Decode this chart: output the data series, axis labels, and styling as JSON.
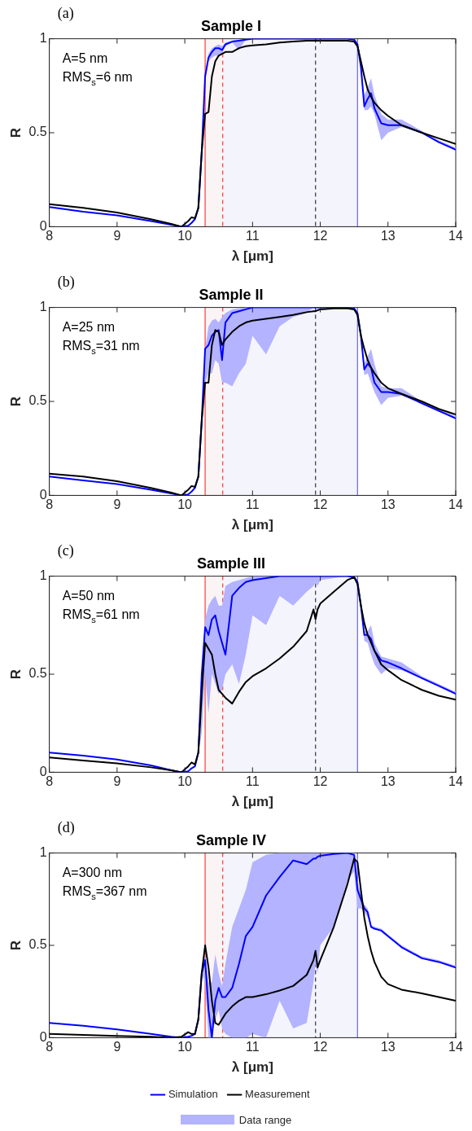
{
  "chart_data": [
    {
      "type": "line",
      "title": "Sample I",
      "xlabel": "λ [μm]",
      "ylabel": "R",
      "annotations": [
        "(a)",
        "A=5 nm",
        "RMS$_{s}$=6 nm"
      ],
      "x": [
        8,
        8.5,
        9,
        9.5,
        9.8,
        9.95,
        10.05,
        10.1,
        10.15,
        10.2,
        10.25,
        10.3,
        10.35,
        10.4,
        10.45,
        10.5,
        10.55,
        10.6,
        10.7,
        10.8,
        10.9,
        11,
        11.2,
        11.4,
        11.6,
        11.8,
        11.9,
        11.93,
        11.96,
        12,
        12.2,
        12.4,
        12.5,
        12.55,
        12.6,
        12.65,
        12.7,
        12.75,
        12.8,
        12.9,
        13,
        13.2,
        13.5,
        13.75,
        14
      ],
      "xlim": [
        8,
        14
      ],
      "xticks": [
        8,
        9,
        10,
        11,
        12,
        13,
        14
      ],
      "ylim": [
        0,
        1
      ],
      "yticks": [
        0,
        0.5,
        1
      ],
      "bands": [
        {
          "axis": "x",
          "from": 10.3,
          "to": 10.56,
          "color": "#fbf4f4"
        },
        {
          "axis": "x",
          "from": 10.56,
          "to": 12.55,
          "color": "#f4f4fd"
        }
      ],
      "ref_lines": [
        {
          "axis": "x",
          "value": 10.3,
          "color": "#f04040",
          "line_style": "solid"
        },
        {
          "axis": "x",
          "value": 10.56,
          "color": "#f04040",
          "line_style": "dashed"
        },
        {
          "axis": "x",
          "value": 11.93,
          "color": "#333333",
          "line_style": "dashed"
        },
        {
          "axis": "x",
          "value": 12.55,
          "color": "#6666ff",
          "line_style": "solid"
        }
      ],
      "series": [
        {
          "color": "#0000ff",
          "values": [
            0.105,
            0.08,
            0.06,
            0.03,
            0.01,
            0,
            0.005,
            0.02,
            0.04,
            0.1,
            0.4,
            0.8,
            0.9,
            0.93,
            0.95,
            0.95,
            0.94,
            0.97,
            0.985,
            0.99,
            0.995,
            1,
            1,
            1,
            1,
            1,
            1,
            1,
            1,
            1,
            1,
            1,
            0.995,
            0.97,
            0.85,
            0.64,
            0.68,
            0.71,
            0.63,
            0.55,
            0.54,
            0.54,
            0.5,
            0.45,
            0.41
          ],
          "lower": [
            0.105,
            0.08,
            0.06,
            0.03,
            0.01,
            0,
            0.005,
            0.02,
            0.04,
            0.1,
            0.4,
            0.78,
            0.88,
            0.9,
            0.91,
            0.91,
            0.92,
            0.96,
            0.98,
            0.94,
            0.995,
            1,
            1,
            1,
            1,
            1,
            1,
            1,
            1,
            1,
            1,
            1,
            0.995,
            0.97,
            0.83,
            0.62,
            0.62,
            0.64,
            0.6,
            0.46,
            0.5,
            0.53,
            0.5,
            0.45,
            0.41
          ],
          "upper": [
            0.105,
            0.08,
            0.06,
            0.03,
            0.01,
            0,
            0.005,
            0.02,
            0.04,
            0.1,
            0.4,
            0.8,
            0.92,
            0.95,
            0.96,
            0.97,
            0.96,
            0.98,
            0.99,
            0.995,
            1,
            1,
            1,
            1,
            1,
            1,
            1,
            1,
            1,
            1,
            1,
            1,
            1,
            0.98,
            0.87,
            0.7,
            0.74,
            0.79,
            0.7,
            0.6,
            0.57,
            0.57,
            0.51,
            0.46,
            0.42
          ]
        },
        {
          "color": "#000000",
          "values": [
            0.12,
            0.1,
            0.075,
            0.04,
            0.015,
            0,
            0.03,
            0.05,
            0.045,
            0.1,
            0.4,
            0.6,
            0.61,
            0.8,
            0.88,
            0.91,
            0.92,
            0.93,
            0.93,
            0.95,
            0.96,
            0.965,
            0.97,
            0.98,
            0.985,
            0.99,
            0.99,
            0.99,
            0.99,
            0.99,
            0.99,
            0.99,
            0.985,
            0.96,
            0.88,
            0.8,
            0.73,
            0.69,
            0.66,
            0.62,
            0.59,
            0.54,
            0.5,
            0.47,
            0.44
          ]
        }
      ]
    },
    {
      "type": "line",
      "title": "Sample II",
      "xlabel": "λ [μm]",
      "ylabel": "R",
      "annotations": [
        "(b)",
        "A=25 nm",
        "RMS$_{s}$=31 nm"
      ],
      "x": [
        8,
        8.5,
        9,
        9.5,
        9.8,
        9.95,
        10.05,
        10.1,
        10.15,
        10.2,
        10.25,
        10.3,
        10.35,
        10.4,
        10.45,
        10.5,
        10.55,
        10.6,
        10.7,
        10.8,
        10.9,
        11,
        11.2,
        11.4,
        11.6,
        11.8,
        11.9,
        11.93,
        11.96,
        12,
        12.2,
        12.4,
        12.5,
        12.55,
        12.6,
        12.65,
        12.7,
        12.75,
        12.8,
        12.9,
        13,
        13.2,
        13.5,
        13.75,
        14
      ],
      "xlim": [
        8,
        14
      ],
      "xticks": [
        8,
        9,
        10,
        11,
        12,
        13,
        14
      ],
      "ylim": [
        0,
        1
      ],
      "yticks": [
        0,
        0.5,
        1
      ],
      "bands": [
        {
          "axis": "x",
          "from": 10.3,
          "to": 10.56,
          "color": "#fbf4f4"
        },
        {
          "axis": "x",
          "from": 10.56,
          "to": 12.55,
          "color": "#f4f4fd"
        }
      ],
      "ref_lines": [
        {
          "axis": "x",
          "value": 10.3,
          "color": "#f04040",
          "line_style": "solid"
        },
        {
          "axis": "x",
          "value": 10.56,
          "color": "#f04040",
          "line_style": "dashed"
        },
        {
          "axis": "x",
          "value": 11.93,
          "color": "#333333",
          "line_style": "dashed"
        },
        {
          "axis": "x",
          "value": 12.55,
          "color": "#6666ff",
          "line_style": "solid"
        }
      ],
      "series": [
        {
          "color": "#0000ff",
          "values": [
            0.1,
            0.08,
            0.06,
            0.03,
            0.01,
            0,
            0.005,
            0.02,
            0.04,
            0.1,
            0.4,
            0.78,
            0.8,
            0.85,
            0.87,
            0.88,
            0.72,
            0.92,
            0.97,
            0.98,
            0.99,
            1,
            1,
            1,
            1,
            1,
            1,
            1,
            1,
            1,
            1,
            1,
            0.995,
            0.97,
            0.85,
            0.67,
            0.7,
            0.68,
            0.6,
            0.55,
            0.55,
            0.54,
            0.49,
            0.45,
            0.41
          ],
          "lower": [
            0.1,
            0.08,
            0.06,
            0.03,
            0.01,
            0,
            0.005,
            0.02,
            0.04,
            0.1,
            0.4,
            0.6,
            0.65,
            0.65,
            0.72,
            0.7,
            0.6,
            0.6,
            0.58,
            0.65,
            0.7,
            0.85,
            0.75,
            0.9,
            0.95,
            0.97,
            1,
            1,
            1,
            1,
            1,
            1,
            0.995,
            0.97,
            0.85,
            0.64,
            0.65,
            0.6,
            0.55,
            0.48,
            0.52,
            0.53,
            0.49,
            0.45,
            0.41
          ],
          "upper": [
            0.1,
            0.08,
            0.06,
            0.03,
            0.01,
            0,
            0.005,
            0.02,
            0.04,
            0.1,
            0.4,
            0.78,
            0.9,
            0.93,
            0.94,
            0.92,
            0.95,
            0.97,
            0.99,
            0.995,
            1,
            1,
            1,
            1,
            1,
            1,
            1,
            1,
            1,
            1,
            1,
            1,
            1,
            0.98,
            0.87,
            0.7,
            0.74,
            0.78,
            0.7,
            0.58,
            0.57,
            0.57,
            0.5,
            0.46,
            0.42
          ]
        },
        {
          "color": "#000000",
          "values": [
            0.115,
            0.1,
            0.075,
            0.04,
            0.015,
            0,
            0.03,
            0.05,
            0.045,
            0.1,
            0.4,
            0.6,
            0.6,
            0.8,
            0.88,
            0.87,
            0.8,
            0.83,
            0.87,
            0.9,
            0.92,
            0.93,
            0.94,
            0.95,
            0.96,
            0.975,
            0.98,
            0.98,
            0.985,
            0.99,
            0.995,
            0.995,
            0.99,
            0.96,
            0.85,
            0.78,
            0.72,
            0.68,
            0.65,
            0.6,
            0.57,
            0.54,
            0.5,
            0.46,
            0.43
          ]
        }
      ]
    },
    {
      "type": "line",
      "title": "Sample III",
      "xlabel": "λ [μm]",
      "ylabel": "R",
      "annotations": [
        "(c)",
        "A=50 nm",
        "RMS$_{s}$=61 nm"
      ],
      "x": [
        8,
        8.5,
        9,
        9.5,
        9.8,
        9.95,
        10.05,
        10.1,
        10.15,
        10.2,
        10.25,
        10.3,
        10.35,
        10.4,
        10.45,
        10.5,
        10.55,
        10.6,
        10.7,
        10.8,
        10.9,
        11,
        11.2,
        11.4,
        11.6,
        11.8,
        11.9,
        11.93,
        11.96,
        12,
        12.2,
        12.4,
        12.5,
        12.55,
        12.6,
        12.65,
        12.7,
        12.75,
        12.8,
        12.9,
        13,
        13.2,
        13.5,
        13.75,
        14
      ],
      "xlim": [
        8,
        14
      ],
      "xticks": [
        8,
        9,
        10,
        11,
        12,
        13,
        14
      ],
      "ylim": [
        0,
        1
      ],
      "yticks": [
        0,
        0.5,
        1
      ],
      "bands": [
        {
          "axis": "x",
          "from": 10.3,
          "to": 10.56,
          "color": "#fbf4f4"
        },
        {
          "axis": "x",
          "from": 10.56,
          "to": 12.55,
          "color": "#f4f4fd"
        }
      ],
      "ref_lines": [
        {
          "axis": "x",
          "value": 10.3,
          "color": "#f04040",
          "line_style": "solid"
        },
        {
          "axis": "x",
          "value": 10.56,
          "color": "#f04040",
          "line_style": "dashed"
        },
        {
          "axis": "x",
          "value": 11.93,
          "color": "#333333",
          "line_style": "dashed"
        },
        {
          "axis": "x",
          "value": 12.55,
          "color": "#6666ff",
          "line_style": "solid"
        }
      ],
      "series": [
        {
          "color": "#0000ff",
          "values": [
            0.1,
            0.085,
            0.065,
            0.035,
            0.01,
            0,
            0.005,
            0.02,
            0.03,
            0.1,
            0.5,
            0.74,
            0.7,
            0.78,
            0.8,
            0.72,
            0.66,
            0.6,
            0.9,
            0.94,
            0.97,
            0.98,
            0.99,
            1,
            1,
            1,
            1,
            1,
            1,
            1,
            1,
            1,
            0.995,
            0.97,
            0.85,
            0.7,
            0.7,
            0.68,
            0.62,
            0.57,
            0.56,
            0.53,
            0.48,
            0.44,
            0.4
          ],
          "lower": [
            0.1,
            0.085,
            0.065,
            0.035,
            0.01,
            0,
            0.005,
            0.02,
            0.03,
            0.1,
            0.2,
            0.5,
            0.3,
            0.5,
            0.45,
            0.4,
            0.42,
            0.5,
            0.55,
            0.45,
            0.6,
            0.8,
            0.75,
            0.9,
            0.85,
            0.92,
            0.95,
            0.97,
            0.95,
            0.98,
            0.99,
            1,
            0.995,
            0.97,
            0.85,
            0.67,
            0.66,
            0.6,
            0.55,
            0.5,
            0.53,
            0.52,
            0.48,
            0.44,
            0.4
          ],
          "upper": [
            0.1,
            0.085,
            0.065,
            0.035,
            0.01,
            0,
            0.005,
            0.02,
            0.03,
            0.1,
            0.5,
            0.78,
            0.85,
            0.88,
            0.9,
            0.85,
            0.85,
            0.95,
            0.97,
            0.98,
            0.99,
            1,
            1,
            1,
            1,
            1,
            1,
            1,
            1,
            1,
            1,
            1,
            1,
            0.98,
            0.87,
            0.72,
            0.72,
            0.75,
            0.66,
            0.59,
            0.58,
            0.56,
            0.49,
            0.45,
            0.41
          ]
        },
        {
          "color": "#000000",
          "values": [
            0.075,
            0.06,
            0.045,
            0.025,
            0.01,
            0,
            0.03,
            0.05,
            0.04,
            0.1,
            0.4,
            0.66,
            0.63,
            0.6,
            0.5,
            0.42,
            0.4,
            0.38,
            0.35,
            0.41,
            0.46,
            0.49,
            0.53,
            0.58,
            0.64,
            0.72,
            0.83,
            0.78,
            0.83,
            0.86,
            0.92,
            0.98,
            0.995,
            0.96,
            0.85,
            0.76,
            0.7,
            0.66,
            0.62,
            0.55,
            0.52,
            0.47,
            0.42,
            0.39,
            0.37
          ]
        }
      ]
    },
    {
      "type": "line",
      "title": "Sample IV",
      "xlabel": "λ [μm]",
      "ylabel": "R",
      "annotations": [
        "(d)",
        "A=300 nm",
        "RMS$_{s}$=367 nm",
        "Data range"
      ],
      "legend": "bottom",
      "x": [
        8,
        8.5,
        9,
        9.5,
        9.8,
        9.95,
        10.05,
        10.1,
        10.15,
        10.2,
        10.25,
        10.3,
        10.35,
        10.4,
        10.45,
        10.5,
        10.55,
        10.6,
        10.7,
        10.8,
        10.9,
        11,
        11.2,
        11.4,
        11.6,
        11.8,
        11.9,
        11.93,
        11.96,
        12,
        12.2,
        12.4,
        12.5,
        12.55,
        12.6,
        12.65,
        12.7,
        12.75,
        12.8,
        12.9,
        13,
        13.2,
        13.5,
        13.75,
        14
      ],
      "xlim": [
        8,
        14
      ],
      "xticks": [
        8,
        9,
        10,
        11,
        12,
        13,
        14
      ],
      "ylim": [
        0,
        1
      ],
      "yticks": [
        0,
        0.5,
        1
      ],
      "bands": [
        {
          "axis": "x",
          "from": 10.3,
          "to": 10.56,
          "color": "#fbf4f4"
        },
        {
          "axis": "x",
          "from": 10.56,
          "to": 12.55,
          "color": "#f4f4fd"
        }
      ],
      "ref_lines": [
        {
          "axis": "x",
          "value": 10.3,
          "color": "#f04040",
          "line_style": "solid"
        },
        {
          "axis": "x",
          "value": 10.56,
          "color": "#f04040",
          "line_style": "dashed"
        },
        {
          "axis": "x",
          "value": 11.93,
          "color": "#333333",
          "line_style": "dashed"
        },
        {
          "axis": "x",
          "value": 12.55,
          "color": "#6666ff",
          "line_style": "solid"
        }
      ],
      "series": [
        {
          "name": "Simulation",
          "color": "#0000ff",
          "values": [
            0.08,
            0.065,
            0.045,
            0.02,
            0.005,
            0,
            0.005,
            0.01,
            0.02,
            0.1,
            0.35,
            0.42,
            0.15,
            0,
            0.2,
            0.27,
            0.22,
            0.22,
            0.27,
            0.4,
            0.55,
            0.6,
            0.77,
            0.87,
            0.96,
            0.94,
            0.97,
            0.97,
            0.98,
            0.985,
            0.995,
            1,
            0.99,
            0.8,
            0.75,
            0.7,
            0.68,
            0.6,
            0.59,
            0.58,
            0.55,
            0.49,
            0.43,
            0.41,
            0.38
          ],
          "lower": [
            0.08,
            0.065,
            0.045,
            0.02,
            0.005,
            0,
            0.005,
            0.01,
            0.02,
            0.1,
            0.35,
            0.3,
            0,
            0,
            0.1,
            0.15,
            0.05,
            0.02,
            0,
            0,
            0,
            0.02,
            0,
            0.2,
            0.05,
            0.08,
            0.3,
            0.4,
            0.35,
            0.5,
            0.6,
            0.85,
            0.9,
            0.7,
            0.7,
            0.68,
            0.65,
            0.6,
            0.59,
            0.58,
            0.55,
            0.49,
            0.43,
            0.41,
            0.38
          ],
          "upper": [
            0.08,
            0.065,
            0.045,
            0.02,
            0.005,
            0,
            0.005,
            0.01,
            0.02,
            0.1,
            0.35,
            0.45,
            0.3,
            0.3,
            0.45,
            0.35,
            0.28,
            0.4,
            0.6,
            0.7,
            0.8,
            0.95,
            0.99,
            1,
            1,
            1,
            1,
            1,
            1,
            1,
            1,
            1,
            1,
            0.85,
            0.78,
            0.72,
            0.7,
            0.61,
            0.6,
            0.59,
            0.56,
            0.5,
            0.44,
            0.42,
            0.39
          ]
        },
        {
          "name": "Measurement",
          "color": "#000000",
          "values": [
            0.02,
            0.015,
            0.01,
            0.005,
            0,
            0.005,
            0.03,
            0.02,
            0.02,
            0.1,
            0.35,
            0.5,
            0.38,
            0.2,
            0.08,
            0.07,
            0.1,
            0.13,
            0.17,
            0.2,
            0.22,
            0.22,
            0.235,
            0.255,
            0.28,
            0.34,
            0.42,
            0.47,
            0.38,
            0.42,
            0.6,
            0.83,
            0.97,
            0.95,
            0.8,
            0.65,
            0.55,
            0.47,
            0.41,
            0.33,
            0.29,
            0.26,
            0.24,
            0.22,
            0.2
          ]
        }
      ]
    }
  ]
}
